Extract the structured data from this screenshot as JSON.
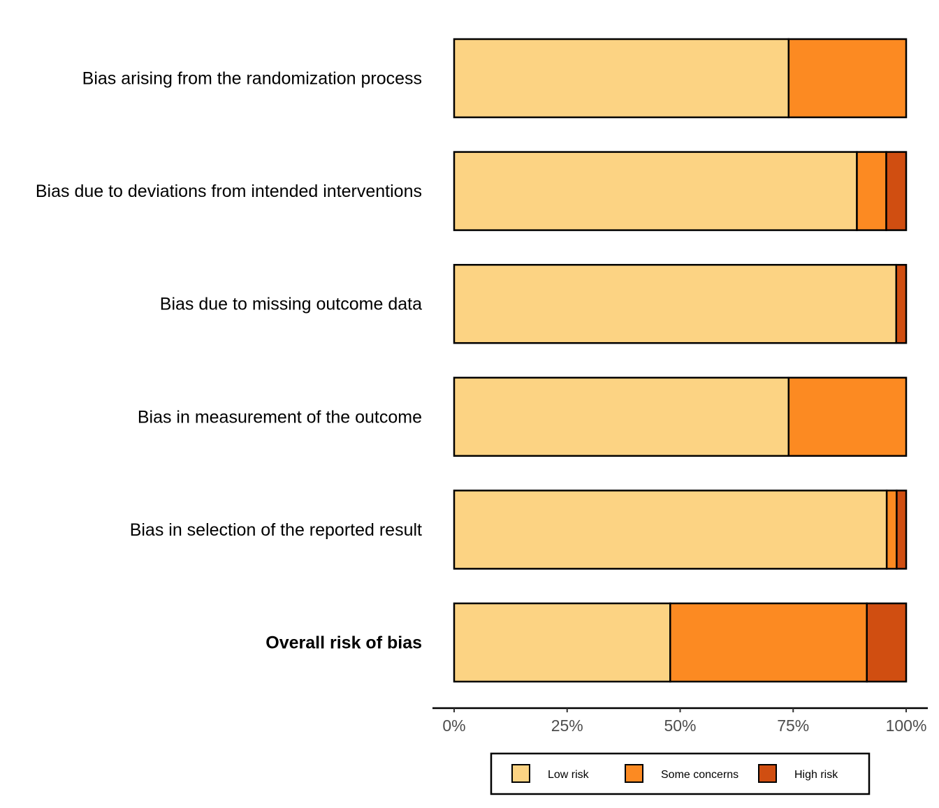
{
  "chart_data": {
    "type": "bar",
    "orientation": "horizontal",
    "stacked": true,
    "categories": [
      "Bias arising from the randomization process",
      "Bias due to deviations from intended interventions",
      "Bias due to missing outcome data",
      "Bias in measurement of the outcome",
      "Bias in selection of the reported result",
      "Overall risk of bias"
    ],
    "bold_categories": [
      "Overall risk of bias"
    ],
    "series": [
      {
        "name": "Low risk",
        "color": "#FCD383",
        "values": [
          74,
          89.1,
          97.8,
          74,
          95.7,
          47.8
        ]
      },
      {
        "name": "Some concerns",
        "color": "#FC8A22",
        "values": [
          26,
          6.5,
          0,
          26,
          2.2,
          43.5
        ]
      },
      {
        "name": "High risk",
        "color": "#D04E11",
        "values": [
          0,
          4.4,
          2.2,
          0,
          2.1,
          8.7
        ]
      }
    ],
    "xlim": [
      0,
      100
    ],
    "x_ticks": [
      0,
      25,
      50,
      75,
      100
    ],
    "x_tick_labels": [
      "0%",
      "25%",
      "50%",
      "75%",
      "100%"
    ],
    "title": "",
    "xlabel": "",
    "ylabel": "",
    "grid": false,
    "legend_position": "bottom"
  }
}
